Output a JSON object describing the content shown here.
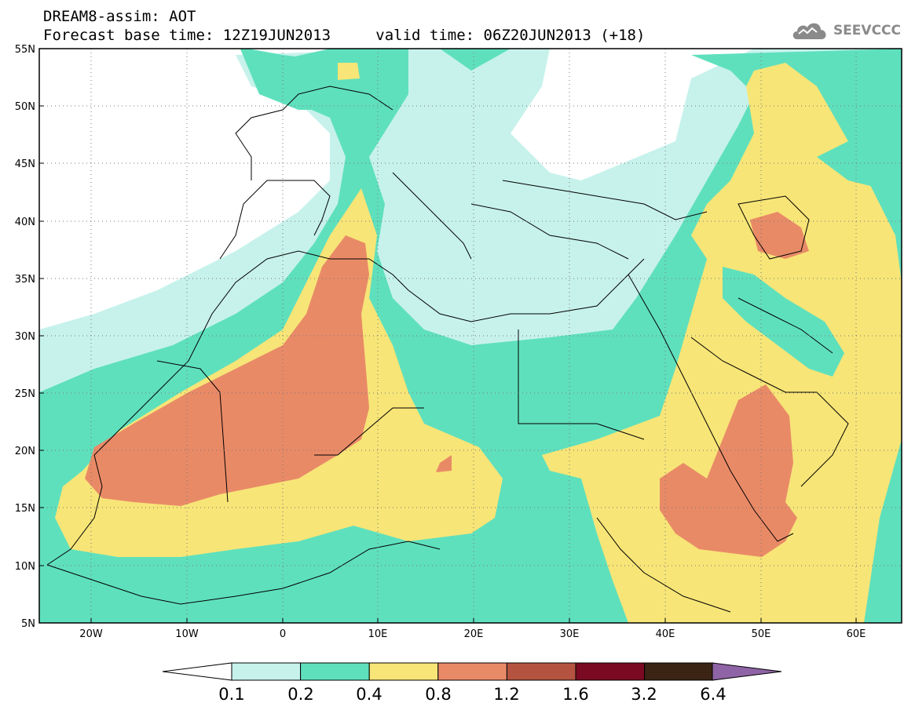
{
  "header": {
    "title": "DREAM8-assim: AOT",
    "base_time": "Forecast base time: 12Z19JUN2013",
    "valid_time": "valid time: 06Z20JUN2013 (+18)",
    "logo_text": "SEEVCCC",
    "logo_icon": "cloud-logo-icon"
  },
  "map": {
    "lon_range": [
      -25,
      65
    ],
    "lat_range": [
      5,
      55
    ],
    "lon_ticks": [
      "20W",
      "10W",
      "0",
      "10E",
      "20E",
      "30E",
      "40E",
      "50E",
      "60E"
    ],
    "lat_ticks": [
      "55N",
      "50N",
      "45N",
      "40N",
      "35N",
      "30N",
      "25N",
      "20N",
      "15N",
      "10N",
      "5N"
    ]
  },
  "colorbar": {
    "labels": [
      "0.1",
      "0.2",
      "0.4",
      "0.8",
      "1.2",
      "1.6",
      "3.2",
      "6.4"
    ],
    "colors": [
      "#c7f2ec",
      "#5fe0bd",
      "#f7e577",
      "#e98a67",
      "#b45440",
      "#7a0a22",
      "#3b2414",
      "#8f64a6"
    ],
    "under_color": "#ffffff"
  }
}
